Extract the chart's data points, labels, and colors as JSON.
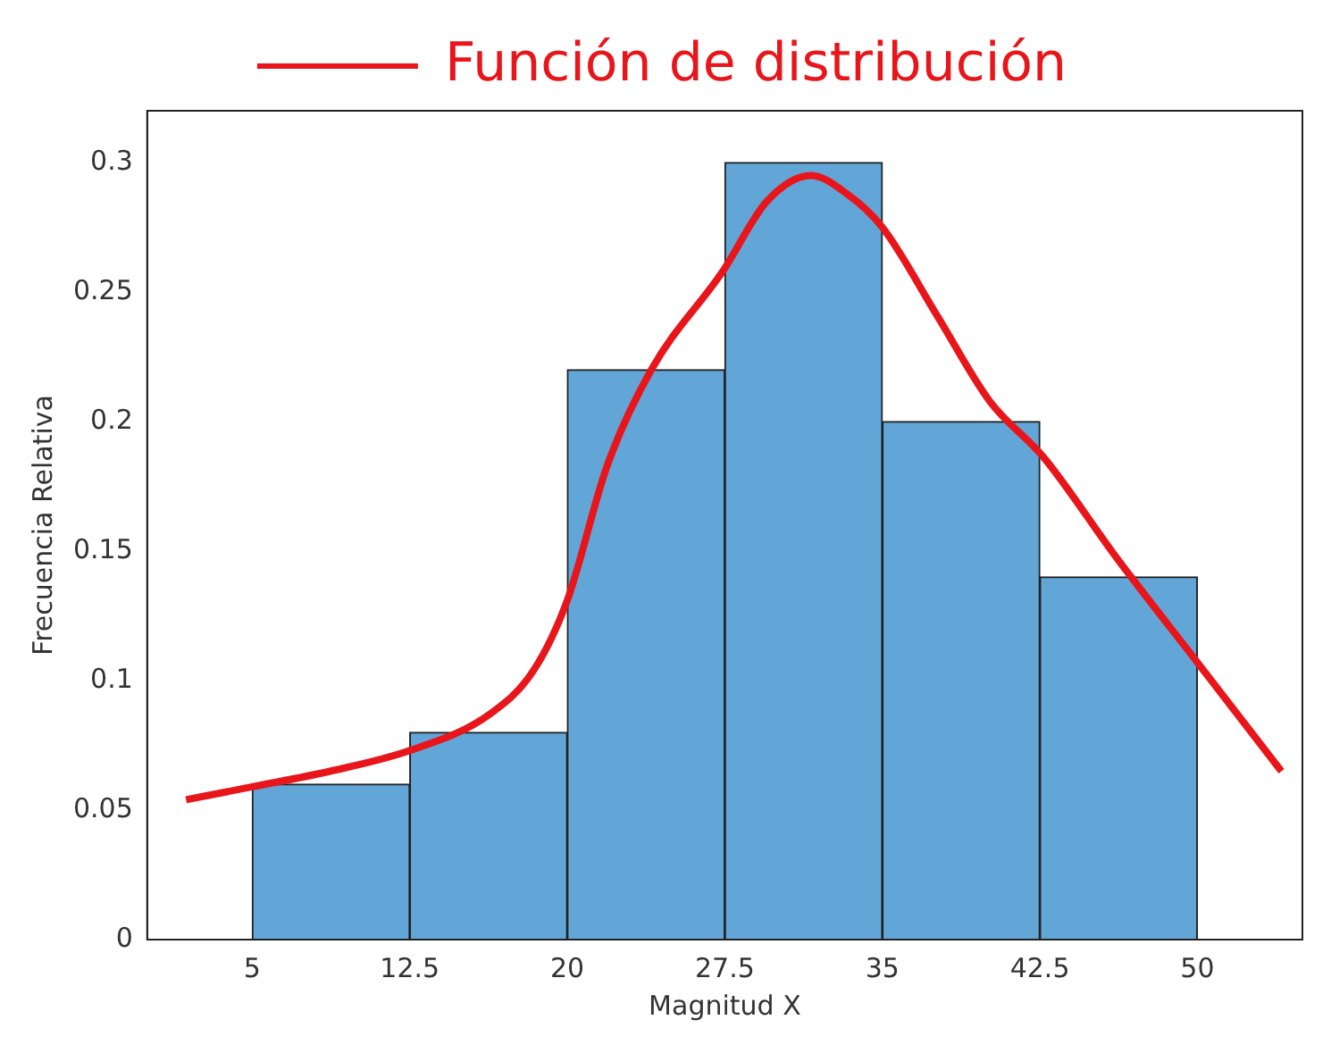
{
  "chart_data": {
    "type": "histogram",
    "xlabel": "Magnitud X",
    "ylabel": "Frecuencia Relativa",
    "bins": [
      5,
      12.5,
      20,
      27.5,
      35,
      42.5,
      50
    ],
    "values": [
      0.06,
      0.08,
      0.22,
      0.3,
      0.2,
      0.14
    ],
    "color": "#62a6d8",
    "series": [
      {
        "type": "line",
        "name": "Función de distribución",
        "color": "#e8161b",
        "x": [
          1.85,
          5,
          8.7,
          12.5,
          16.3,
          18.4,
          20,
          21.9,
          24,
          27.4,
          29.5,
          31.6,
          33.3,
          35,
          37.6,
          40.1,
          42.7,
          46.1,
          50,
          54
        ],
        "values": [
          0.054,
          0.059,
          0.065,
          0.073,
          0.087,
          0.104,
          0.131,
          0.183,
          0.22,
          0.258,
          0.285,
          0.295,
          0.288,
          0.275,
          0.241,
          0.208,
          0.186,
          0.148,
          0.107,
          0.065
        ]
      }
    ],
    "xlim": [
      0,
      55
    ],
    "xticks": [
      5,
      12.5,
      20,
      27.5,
      35,
      42.5,
      50
    ],
    "ylim": [
      0,
      0.32
    ],
    "yticks": [
      0,
      0.05,
      0.1,
      0.15,
      0.2,
      0.25,
      0.3
    ],
    "grid": false,
    "legend": "top"
  }
}
